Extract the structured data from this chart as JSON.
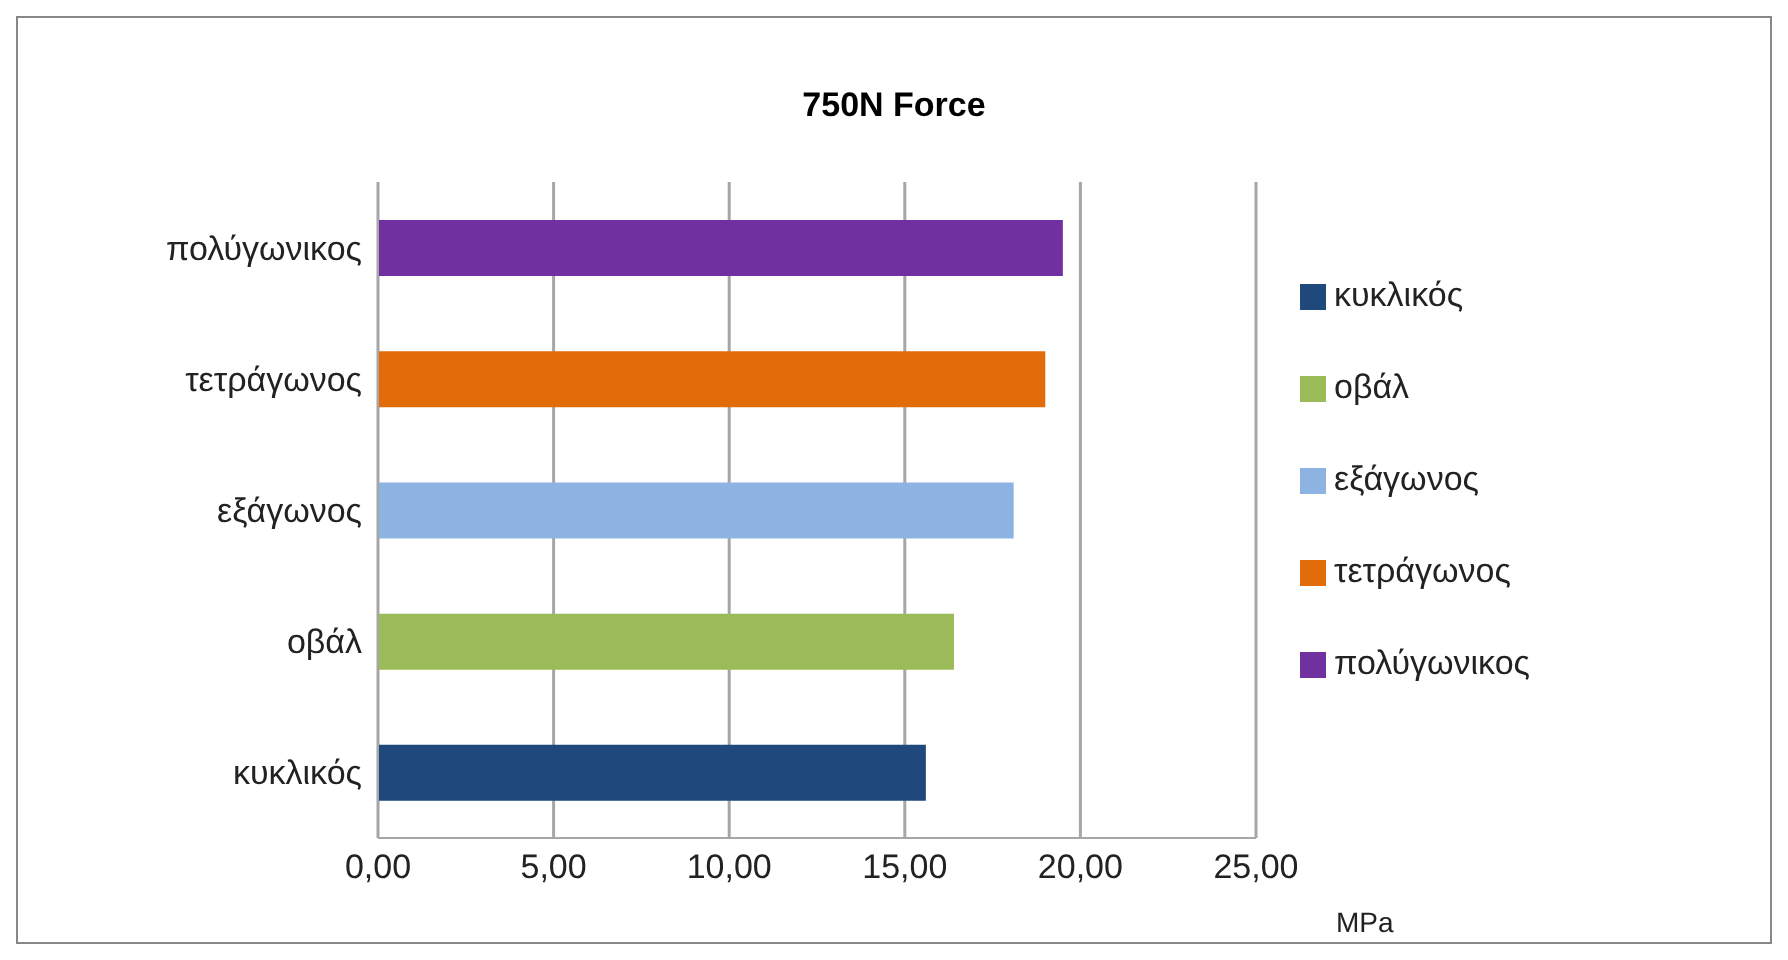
{
  "chart_data": {
    "type": "bar",
    "orientation": "horizontal",
    "stacked": true,
    "title": "750N Force",
    "xlabel": "MPa",
    "categories": [
      "πολύγωνικος",
      "τετράγωνος",
      "εξάγωνος",
      "οβάλ",
      "κυκλικός"
    ],
    "series": [
      {
        "name": "κυκλικός",
        "color": "#1f497d",
        "values": [
          null,
          null,
          null,
          null,
          15.6
        ]
      },
      {
        "name": "οβάλ",
        "color": "#9bbb59",
        "values": [
          null,
          null,
          null,
          16.4,
          null
        ]
      },
      {
        "name": "εξάγωνος",
        "color": "#8db3e2",
        "values": [
          null,
          null,
          18.1,
          null,
          null
        ]
      },
      {
        "name": "τετράγωνος",
        "color": "#e36c0a",
        "values": [
          null,
          19.0,
          null,
          null,
          null
        ]
      },
      {
        "name": "πολύγωνικος",
        "color": "#7030a0",
        "values": [
          19.5,
          null,
          null,
          null,
          null
        ]
      }
    ],
    "xlim": [
      0,
      25
    ],
    "xticks": [
      {
        "value": 0,
        "label": "0,00"
      },
      {
        "value": 5,
        "label": "5,00"
      },
      {
        "value": 10,
        "label": "10,00"
      },
      {
        "value": 15,
        "label": "15,00"
      },
      {
        "value": 20,
        "label": "20,00"
      },
      {
        "value": 25,
        "label": "25,00"
      }
    ],
    "grid": "x",
    "legend": "right"
  }
}
